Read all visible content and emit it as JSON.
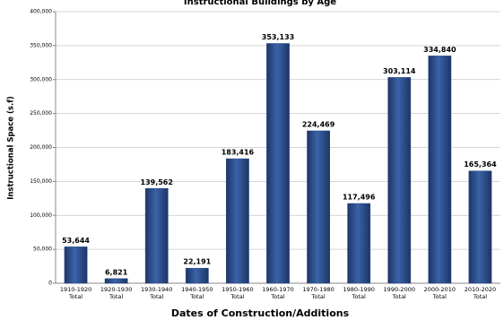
{
  "chart_data": {
    "type": "bar",
    "title": "Instructional Buildings by Age",
    "x_label": "Dates of Construction/Additions",
    "y_label": "Instructional Space (s.f)",
    "categories": [
      "1910-1920 Total",
      "1920-1930 Total",
      "1930-1940 Total",
      "1940-1950 Total",
      "1950-1960 Total",
      "1960-1970 Total",
      "1970-1980 Total",
      "1980-1990 Total",
      "1990-2000 Total",
      "2000-2010 Total",
      "2010-2020 Total"
    ],
    "values": [
      53644,
      6821,
      139562,
      22191,
      183416,
      353133,
      224469,
      117496,
      303114,
      334840,
      165364
    ],
    "value_labels": [
      "53,644",
      "6,821",
      "139,562",
      "22,191",
      "183,416",
      "353,133",
      "224,469",
      "117,496",
      "303,114",
      "334,840",
      "165,364"
    ],
    "color": "#2b4a86",
    "ylim": [
      0,
      400000
    ],
    "yticks": [
      0,
      {
        "value": 50000,
        "label": "50,000"
      },
      {
        "value": 100000,
        "label": "100,000"
      },
      {
        "value": 150000,
        "label": "150,000"
      },
      {
        "value": 200000,
        "label": "200,000"
      },
      {
        "value": 250000,
        "label": "250,000"
      },
      {
        "value": 300000,
        "label": "300,000"
      },
      {
        "value": 350000,
        "label": "350,000"
      },
      {
        "value": 400000,
        "label": "400,000"
      }
    ],
    "grid": true
  }
}
